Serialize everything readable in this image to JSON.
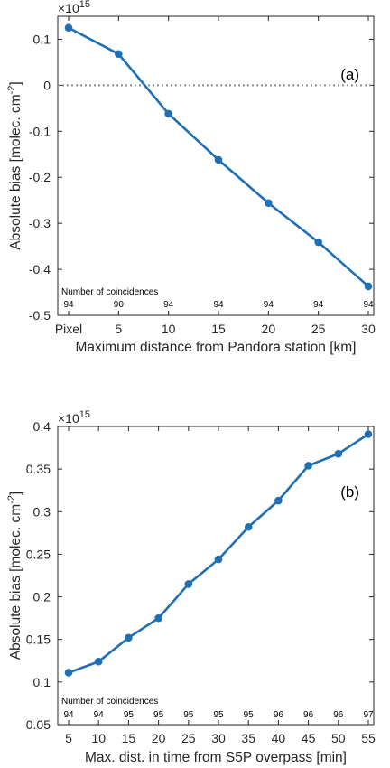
{
  "chart_data": [
    {
      "type": "line",
      "panel_label": "(a)",
      "xlabel": "Maximum distance from Pandora station [km]",
      "ylabel": "Absolute bias [molec. cm",
      "ylabel_sup": "-2",
      "ylabel_end": "]",
      "exponent_prefix": "×10",
      "exponent_power": "15",
      "categories": [
        "Pixel",
        "5",
        "10",
        "15",
        "20",
        "25",
        "30"
      ],
      "x": [
        0,
        5,
        10,
        15,
        20,
        25,
        30
      ],
      "xlim": [
        0,
        30
      ],
      "ylim": [
        -0.5,
        0.15
      ],
      "yticks": [
        -0.5,
        -0.4,
        -0.3,
        -0.2,
        -0.1,
        0,
        0.1
      ],
      "ytick_labels": [
        "-0.5",
        "-0.4",
        "-0.3",
        "-0.2",
        "-0.1",
        "0",
        "0.1"
      ],
      "reference_line": 0,
      "series": [
        {
          "values": [
            0.125,
            0.068,
            -0.062,
            -0.162,
            -0.256,
            -0.341,
            -0.437
          ],
          "color": "#1f6fb5"
        }
      ],
      "coincidences_title": "Number of coincidences",
      "coincidences": [
        "94",
        "90",
        "94",
        "94",
        "94",
        "94",
        "94"
      ]
    },
    {
      "type": "line",
      "panel_label": "(b)",
      "xlabel": "Max. dist. in time from S5P overpass [min]",
      "ylabel": "Absolute bias [molec. cm",
      "ylabel_sup": "-2",
      "ylabel_end": "]",
      "exponent_prefix": "×10",
      "exponent_power": "15",
      "categories": [
        "5",
        "10",
        "15",
        "20",
        "25",
        "30",
        "35",
        "40",
        "45",
        "50",
        "55"
      ],
      "x": [
        5,
        10,
        15,
        20,
        25,
        30,
        35,
        40,
        45,
        50,
        55
      ],
      "xlim": [
        5,
        55
      ],
      "ylim": [
        0.05,
        0.4
      ],
      "yticks": [
        0.05,
        0.1,
        0.15,
        0.2,
        0.25,
        0.3,
        0.35,
        0.4
      ],
      "ytick_labels": [
        "0.05",
        "0.1",
        "0.15",
        "0.2",
        "0.25",
        "0.3",
        "0.35",
        "0.4"
      ],
      "series": [
        {
          "values": [
            0.111,
            0.124,
            0.152,
            0.175,
            0.215,
            0.244,
            0.282,
            0.313,
            0.354,
            0.368,
            0.391
          ],
          "color": "#1f6fb5"
        }
      ],
      "coincidences_title": "Number of coincidences",
      "coincidences": [
        "94",
        "94",
        "95",
        "95",
        "95",
        "95",
        "95",
        "96",
        "96",
        "96",
        "97"
      ]
    }
  ]
}
